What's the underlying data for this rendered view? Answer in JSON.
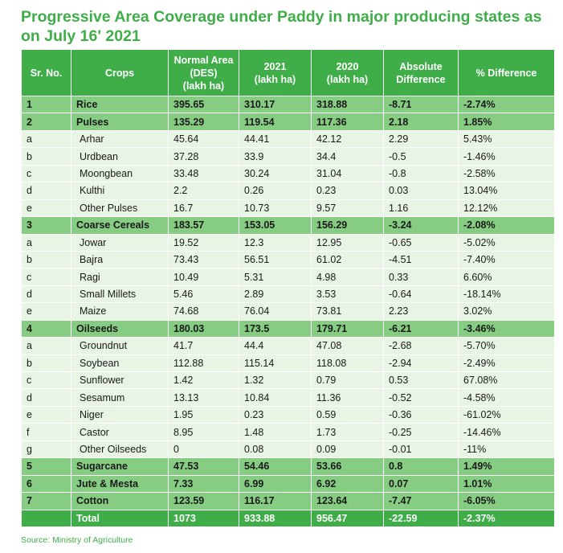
{
  "title": "Progressive Area Coverage under Paddy in major producing states as on July 16' 2021",
  "headers": {
    "sr_no": "Sr. No.",
    "crops": "Crops",
    "normal_area": [
      "Normal Area",
      "(DES)",
      "(lakh ha)"
    ],
    "y2021": [
      "2021",
      "(lakh ha)"
    ],
    "y2020": [
      "2020",
      "(lakh ha)"
    ],
    "abs_diff": [
      "Absolute",
      "Difference"
    ],
    "pct_diff": "% Difference"
  },
  "rows": [
    {
      "type": "main",
      "sr": "1",
      "crop": "Rice",
      "normal": "395.65",
      "y2021": "310.17",
      "y2020": "318.88",
      "abs": "-8.71",
      "pct": "-2.74%"
    },
    {
      "type": "main",
      "sr": "2",
      "crop": "Pulses",
      "normal": "135.29",
      "y2021": "119.54",
      "y2020": "117.36",
      "abs": "2.18",
      "pct": "1.85%"
    },
    {
      "type": "sub",
      "sr": "a",
      "crop": "Arhar",
      "normal": "45.64",
      "y2021": "44.41",
      "y2020": "42.12",
      "abs": "2.29",
      "pct": "5.43%"
    },
    {
      "type": "sub",
      "sr": "b",
      "crop": "Urdbean",
      "normal": "37.28",
      "y2021": "33.9",
      "y2020": "34.4",
      "abs": "-0.5",
      "pct": "-1.46%"
    },
    {
      "type": "sub",
      "sr": "c",
      "crop": "Moongbean",
      "normal": "33.48",
      "y2021": "30.24",
      "y2020": "31.04",
      "abs": "-0.8",
      "pct": "-2.58%"
    },
    {
      "type": "sub",
      "sr": "d",
      "crop": "Kulthi",
      "normal": "2.2",
      "y2021": "0.26",
      "y2020": "0.23",
      "abs": "0.03",
      "pct": "13.04%"
    },
    {
      "type": "sub",
      "sr": "e",
      "crop": "Other Pulses",
      "normal": "16.7",
      "y2021": "10.73",
      "y2020": "9.57",
      "abs": "1.16",
      "pct": "12.12%"
    },
    {
      "type": "main",
      "sr": "3",
      "crop": "Coarse Cereals",
      "normal": "183.57",
      "y2021": "153.05",
      "y2020": "156.29",
      "abs": "-3.24",
      "pct": "-2.08%"
    },
    {
      "type": "sub",
      "sr": "a",
      "crop": "Jowar",
      "normal": "19.52",
      "y2021": "12.3",
      "y2020": "12.95",
      "abs": "-0.65",
      "pct": "-5.02%"
    },
    {
      "type": "sub",
      "sr": "b",
      "crop": "Bajra",
      "normal": "73.43",
      "y2021": "56.51",
      "y2020": "61.02",
      "abs": "-4.51",
      "pct": "-7.40%"
    },
    {
      "type": "sub",
      "sr": "c",
      "crop": "Ragi",
      "normal": "10.49",
      "y2021": "5.31",
      "y2020": "4.98",
      "abs": "0.33",
      "pct": "6.60%"
    },
    {
      "type": "sub",
      "sr": "d",
      "crop": "Small Millets",
      "normal": "5.46",
      "y2021": "2.89",
      "y2020": "3.53",
      "abs": "-0.64",
      "pct": "-18.14%"
    },
    {
      "type": "sub",
      "sr": "e",
      "crop": "Maize",
      "normal": "74.68",
      "y2021": "76.04",
      "y2020": "73.81",
      "abs": "2.23",
      "pct": "3.02%"
    },
    {
      "type": "main",
      "sr": "4",
      "crop": "Oilseeds",
      "normal": "180.03",
      "y2021": "173.5",
      "y2020": "179.71",
      "abs": "-6.21",
      "pct": "-3.46%"
    },
    {
      "type": "sub",
      "sr": "a",
      "crop": "Groundnut",
      "normal": "41.7",
      "y2021": "44.4",
      "y2020": "47.08",
      "abs": "-2.68",
      "pct": "-5.70%"
    },
    {
      "type": "sub",
      "sr": "b",
      "crop": "Soybean",
      "normal": "112.88",
      "y2021": "115.14",
      "y2020": "118.08",
      "abs": "-2.94",
      "pct": "-2.49%"
    },
    {
      "type": "sub",
      "sr": "c",
      "crop": "Sunflower",
      "normal": "1.42",
      "y2021": "1.32",
      "y2020": "0.79",
      "abs": "0.53",
      "pct": "67.08%"
    },
    {
      "type": "sub",
      "sr": "d",
      "crop": "Sesamum",
      "normal": "13.13",
      "y2021": "10.84",
      "y2020": "11.36",
      "abs": "-0.52",
      "pct": "-4.58%"
    },
    {
      "type": "sub",
      "sr": "e",
      "crop": "Niger",
      "normal": "1.95",
      "y2021": "0.23",
      "y2020": "0.59",
      "abs": "-0.36",
      "pct": "-61.02%"
    },
    {
      "type": "sub",
      "sr": "f",
      "crop": "Castor",
      "normal": "8.95",
      "y2021": "1.48",
      "y2020": "1.73",
      "abs": "-0.25",
      "pct": "-14.46%"
    },
    {
      "type": "sub",
      "sr": "g",
      "crop": "Other Oilseeds",
      "normal": "0",
      "y2021": "0.08",
      "y2020": "0.09",
      "abs": "-0.01",
      "pct": "-11%"
    },
    {
      "type": "main",
      "sr": "5",
      "crop": "Sugarcane",
      "normal": "47.53",
      "y2021": "54.46",
      "y2020": "53.66",
      "abs": "0.8",
      "pct": "1.49%"
    },
    {
      "type": "main",
      "sr": "6",
      "crop": "Jute & Mesta",
      "normal": "7.33",
      "y2021": "6.99",
      "y2020": "6.92",
      "abs": "0.07",
      "pct": "1.01%"
    },
    {
      "type": "main",
      "sr": "7",
      "crop": "Cotton",
      "normal": "123.59",
      "y2021": "116.17",
      "y2020": "123.64",
      "abs": "-7.47",
      "pct": "-6.05%"
    },
    {
      "type": "total",
      "sr": "",
      "crop": "Total",
      "normal": "1073",
      "y2021": "933.88",
      "y2020": "956.47",
      "abs": "-22.59",
      "pct": "-2.37%"
    }
  ],
  "source": "Source: Ministry of Agriculture",
  "colors": {
    "header": "#3fae49",
    "main_row": "#86cc82",
    "sub_row": "#e8f5e4",
    "title": "#3fae49"
  }
}
